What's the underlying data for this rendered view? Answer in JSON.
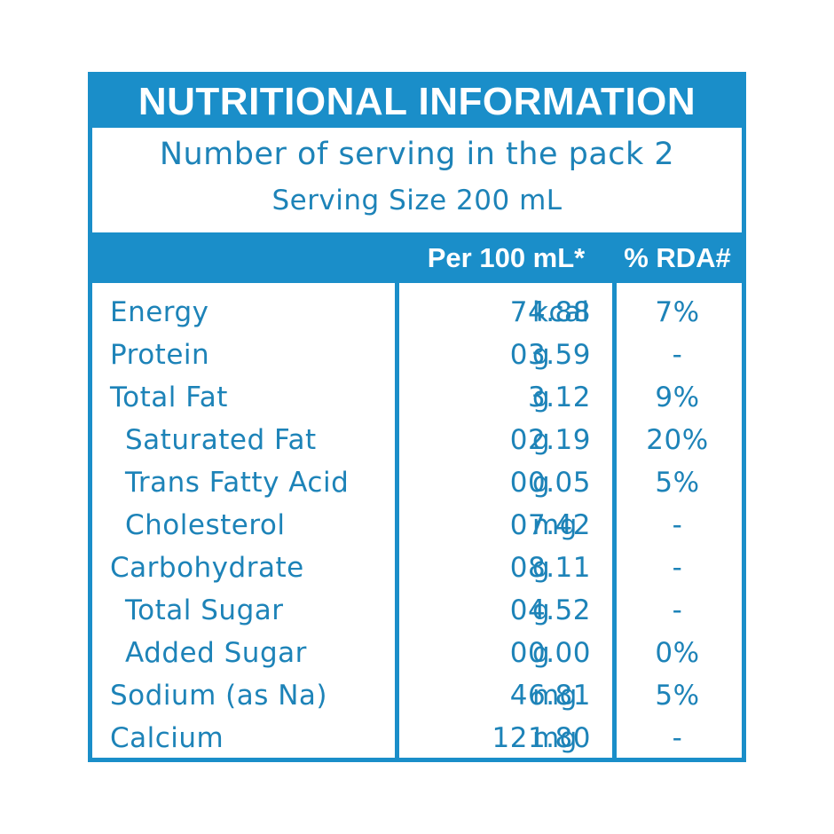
{
  "title": "NUTRITIONAL INFORMATION",
  "servings_line": "Number of serving in the pack 2",
  "serving_size_line": "Serving Size 200 mL",
  "columns": {
    "per": "Per 100 mL*",
    "rda": "% RDA#"
  },
  "rows": [
    {
      "name": "Energy",
      "value": "74.88",
      "unit": "kcal",
      "rda": "7%"
    },
    {
      "name": "Protein",
      "value": "03.59",
      "unit": "g",
      "rda": "-"
    },
    {
      "name": "Total Fat",
      "value": "3.12",
      "unit": "g",
      "rda": "9%"
    },
    {
      "name": "Saturated Fat",
      "value": "02.19",
      "unit": "g",
      "rda": "20%"
    },
    {
      "name": "Trans Fatty Acid",
      "value": "00.05",
      "unit": "g",
      "rda": "5%"
    },
    {
      "name": "Cholesterol",
      "value": "07.42",
      "unit": "mg",
      "rda": "-"
    },
    {
      "name": "Carbohydrate",
      "value": "08.11",
      "unit": "g",
      "rda": "-"
    },
    {
      "name": "Total Sugar",
      "value": "04.52",
      "unit": "g",
      "rda": "-"
    },
    {
      "name": "Added Sugar",
      "value": "00.00",
      "unit": "g",
      "rda": "0%"
    },
    {
      "name": "Sodium (as Na)",
      "value": "46.81",
      "unit": "mg",
      "rda": "5%"
    },
    {
      "name": "Calcium",
      "value": "121.80",
      "unit": "mg",
      "rda": "-"
    }
  ],
  "colors": {
    "accent": "#1a8ec9",
    "text": "#1d83b8",
    "background": "#ffffff"
  }
}
